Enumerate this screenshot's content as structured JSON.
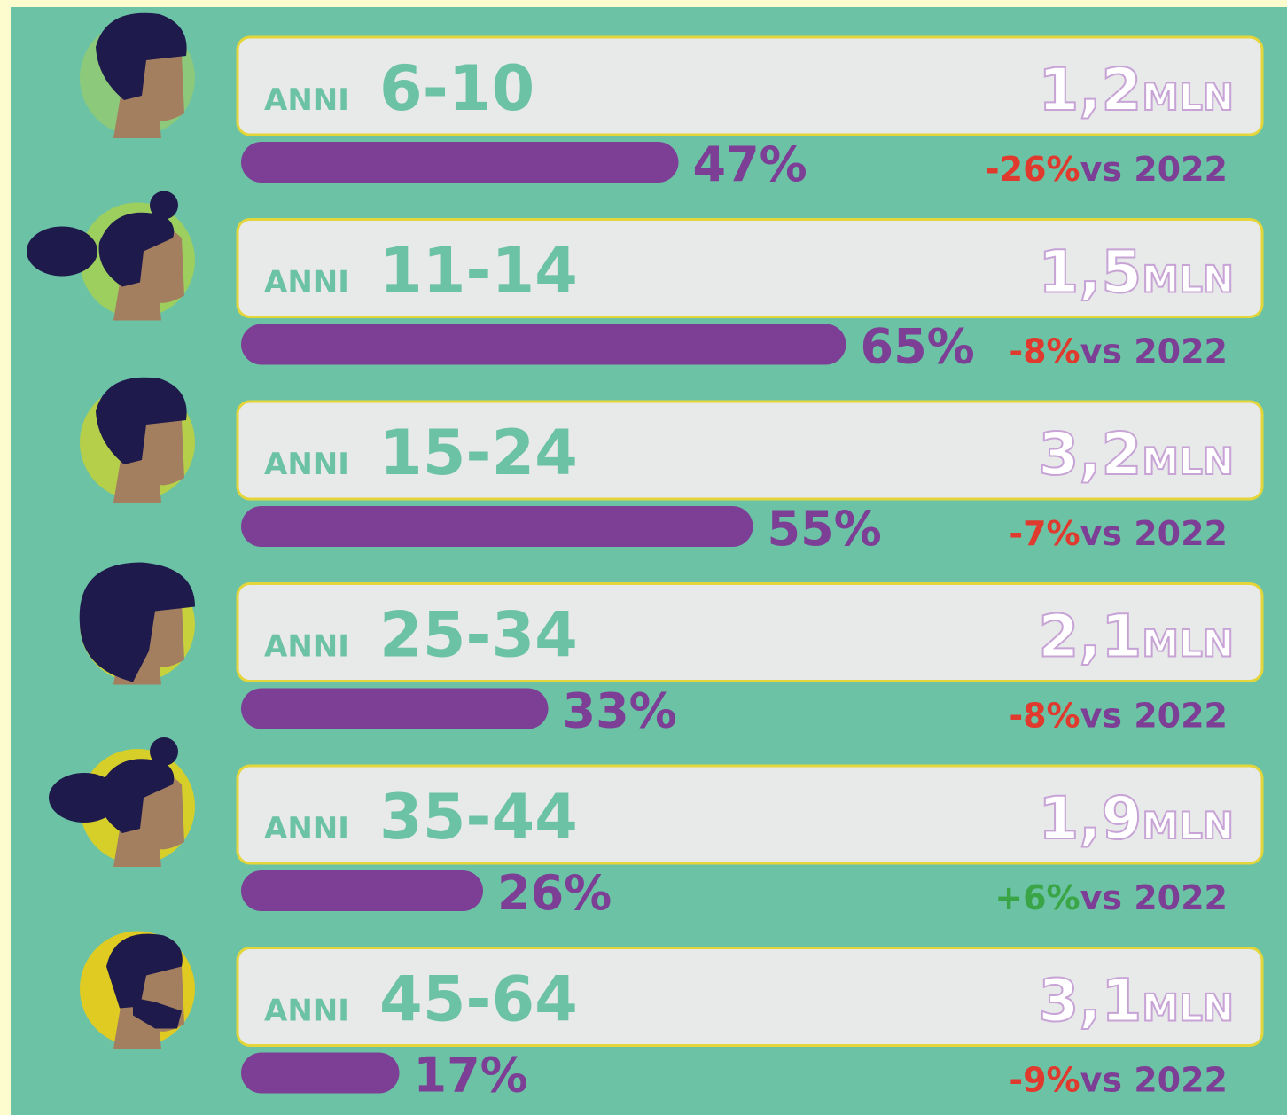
{
  "chart_data": {
    "type": "bar",
    "orientation": "horizontal",
    "row_prefix": "ANNI",
    "categories": [
      "6-10",
      "11-14",
      "15-24",
      "25-34",
      "35-44",
      "45-64"
    ],
    "values": [
      47,
      65,
      55,
      33,
      26,
      17
    ],
    "value_labels": [
      "47%",
      "65%",
      "55%",
      "33%",
      "26%",
      "17%"
    ],
    "xlim": [
      0,
      100
    ],
    "color": "#7d3f96",
    "populations": [
      {
        "value": 1.2,
        "label": "1,2"
      },
      {
        "value": 1.5,
        "label": "1,5"
      },
      {
        "value": 3.2,
        "label": "3,2"
      },
      {
        "value": 2.1,
        "label": "2,1"
      },
      {
        "value": 1.9,
        "label": "1,9"
      },
      {
        "value": 3.1,
        "label": "3,1"
      }
    ],
    "population_unit": "MLN",
    "changes": [
      {
        "value": -26,
        "label": "-26%"
      },
      {
        "value": -8,
        "label": "-8%"
      },
      {
        "value": -7,
        "label": "-7%"
      },
      {
        "value": -8,
        "label": "-8%"
      },
      {
        "value": 6,
        "label": "+6%"
      },
      {
        "value": -9,
        "label": "-9%"
      }
    ],
    "change_suffix": "vs 2022",
    "down_color": "#e0392d",
    "up_color": "#3aa547"
  }
}
